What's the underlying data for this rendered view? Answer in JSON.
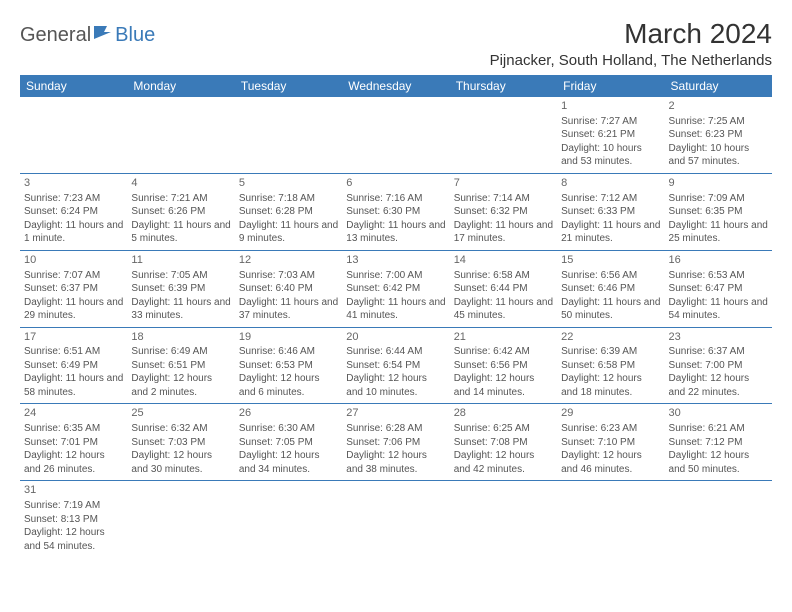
{
  "logo": {
    "general": "General",
    "blue": "Blue"
  },
  "title": "March 2024",
  "location": "Pijnacker, South Holland, The Netherlands",
  "colors": {
    "header_bg": "#3a7ab8",
    "header_text": "#ffffff",
    "border": "#3a7ab8",
    "text": "#555555"
  },
  "weekdays": [
    "Sunday",
    "Monday",
    "Tuesday",
    "Wednesday",
    "Thursday",
    "Friday",
    "Saturday"
  ],
  "weeks": [
    [
      null,
      null,
      null,
      null,
      null,
      {
        "day": "1",
        "sunrise": "Sunrise: 7:27 AM",
        "sunset": "Sunset: 6:21 PM",
        "daylight": "Daylight: 10 hours and 53 minutes."
      },
      {
        "day": "2",
        "sunrise": "Sunrise: 7:25 AM",
        "sunset": "Sunset: 6:23 PM",
        "daylight": "Daylight: 10 hours and 57 minutes."
      }
    ],
    [
      {
        "day": "3",
        "sunrise": "Sunrise: 7:23 AM",
        "sunset": "Sunset: 6:24 PM",
        "daylight": "Daylight: 11 hours and 1 minute."
      },
      {
        "day": "4",
        "sunrise": "Sunrise: 7:21 AM",
        "sunset": "Sunset: 6:26 PM",
        "daylight": "Daylight: 11 hours and 5 minutes."
      },
      {
        "day": "5",
        "sunrise": "Sunrise: 7:18 AM",
        "sunset": "Sunset: 6:28 PM",
        "daylight": "Daylight: 11 hours and 9 minutes."
      },
      {
        "day": "6",
        "sunrise": "Sunrise: 7:16 AM",
        "sunset": "Sunset: 6:30 PM",
        "daylight": "Daylight: 11 hours and 13 minutes."
      },
      {
        "day": "7",
        "sunrise": "Sunrise: 7:14 AM",
        "sunset": "Sunset: 6:32 PM",
        "daylight": "Daylight: 11 hours and 17 minutes."
      },
      {
        "day": "8",
        "sunrise": "Sunrise: 7:12 AM",
        "sunset": "Sunset: 6:33 PM",
        "daylight": "Daylight: 11 hours and 21 minutes."
      },
      {
        "day": "9",
        "sunrise": "Sunrise: 7:09 AM",
        "sunset": "Sunset: 6:35 PM",
        "daylight": "Daylight: 11 hours and 25 minutes."
      }
    ],
    [
      {
        "day": "10",
        "sunrise": "Sunrise: 7:07 AM",
        "sunset": "Sunset: 6:37 PM",
        "daylight": "Daylight: 11 hours and 29 minutes."
      },
      {
        "day": "11",
        "sunrise": "Sunrise: 7:05 AM",
        "sunset": "Sunset: 6:39 PM",
        "daylight": "Daylight: 11 hours and 33 minutes."
      },
      {
        "day": "12",
        "sunrise": "Sunrise: 7:03 AM",
        "sunset": "Sunset: 6:40 PM",
        "daylight": "Daylight: 11 hours and 37 minutes."
      },
      {
        "day": "13",
        "sunrise": "Sunrise: 7:00 AM",
        "sunset": "Sunset: 6:42 PM",
        "daylight": "Daylight: 11 hours and 41 minutes."
      },
      {
        "day": "14",
        "sunrise": "Sunrise: 6:58 AM",
        "sunset": "Sunset: 6:44 PM",
        "daylight": "Daylight: 11 hours and 45 minutes."
      },
      {
        "day": "15",
        "sunrise": "Sunrise: 6:56 AM",
        "sunset": "Sunset: 6:46 PM",
        "daylight": "Daylight: 11 hours and 50 minutes."
      },
      {
        "day": "16",
        "sunrise": "Sunrise: 6:53 AM",
        "sunset": "Sunset: 6:47 PM",
        "daylight": "Daylight: 11 hours and 54 minutes."
      }
    ],
    [
      {
        "day": "17",
        "sunrise": "Sunrise: 6:51 AM",
        "sunset": "Sunset: 6:49 PM",
        "daylight": "Daylight: 11 hours and 58 minutes."
      },
      {
        "day": "18",
        "sunrise": "Sunrise: 6:49 AM",
        "sunset": "Sunset: 6:51 PM",
        "daylight": "Daylight: 12 hours and 2 minutes."
      },
      {
        "day": "19",
        "sunrise": "Sunrise: 6:46 AM",
        "sunset": "Sunset: 6:53 PM",
        "daylight": "Daylight: 12 hours and 6 minutes."
      },
      {
        "day": "20",
        "sunrise": "Sunrise: 6:44 AM",
        "sunset": "Sunset: 6:54 PM",
        "daylight": "Daylight: 12 hours and 10 minutes."
      },
      {
        "day": "21",
        "sunrise": "Sunrise: 6:42 AM",
        "sunset": "Sunset: 6:56 PM",
        "daylight": "Daylight: 12 hours and 14 minutes."
      },
      {
        "day": "22",
        "sunrise": "Sunrise: 6:39 AM",
        "sunset": "Sunset: 6:58 PM",
        "daylight": "Daylight: 12 hours and 18 minutes."
      },
      {
        "day": "23",
        "sunrise": "Sunrise: 6:37 AM",
        "sunset": "Sunset: 7:00 PM",
        "daylight": "Daylight: 12 hours and 22 minutes."
      }
    ],
    [
      {
        "day": "24",
        "sunrise": "Sunrise: 6:35 AM",
        "sunset": "Sunset: 7:01 PM",
        "daylight": "Daylight: 12 hours and 26 minutes."
      },
      {
        "day": "25",
        "sunrise": "Sunrise: 6:32 AM",
        "sunset": "Sunset: 7:03 PM",
        "daylight": "Daylight: 12 hours and 30 minutes."
      },
      {
        "day": "26",
        "sunrise": "Sunrise: 6:30 AM",
        "sunset": "Sunset: 7:05 PM",
        "daylight": "Daylight: 12 hours and 34 minutes."
      },
      {
        "day": "27",
        "sunrise": "Sunrise: 6:28 AM",
        "sunset": "Sunset: 7:06 PM",
        "daylight": "Daylight: 12 hours and 38 minutes."
      },
      {
        "day": "28",
        "sunrise": "Sunrise: 6:25 AM",
        "sunset": "Sunset: 7:08 PM",
        "daylight": "Daylight: 12 hours and 42 minutes."
      },
      {
        "day": "29",
        "sunrise": "Sunrise: 6:23 AM",
        "sunset": "Sunset: 7:10 PM",
        "daylight": "Daylight: 12 hours and 46 minutes."
      },
      {
        "day": "30",
        "sunrise": "Sunrise: 6:21 AM",
        "sunset": "Sunset: 7:12 PM",
        "daylight": "Daylight: 12 hours and 50 minutes."
      }
    ],
    [
      {
        "day": "31",
        "sunrise": "Sunrise: 7:19 AM",
        "sunset": "Sunset: 8:13 PM",
        "daylight": "Daylight: 12 hours and 54 minutes."
      },
      null,
      null,
      null,
      null,
      null,
      null
    ]
  ]
}
